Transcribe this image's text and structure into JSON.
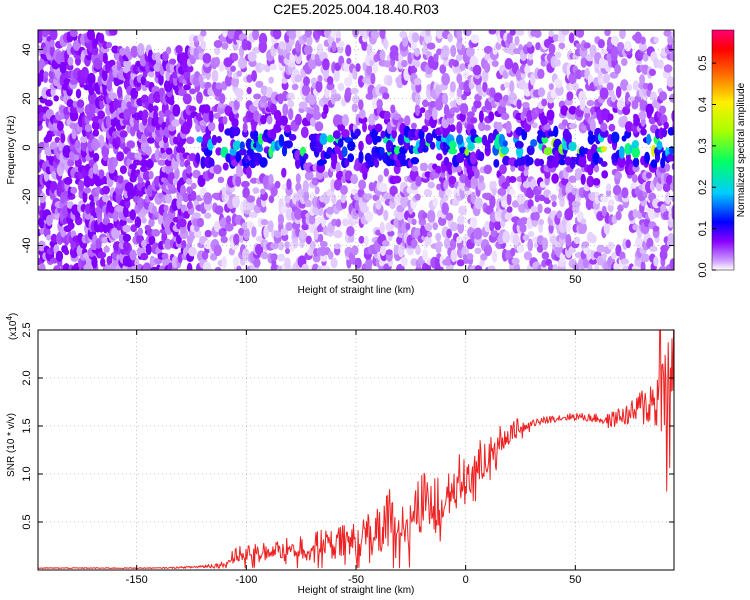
{
  "figure": {
    "title": "C2E5.2025.004.18.40.R03"
  },
  "chart_data": [
    {
      "type": "heatmap",
      "xlabel": "Height of straight line (km)",
      "ylabel": "Frequency (Hz)",
      "xlim": [
        -195,
        95
      ],
      "ylim": [
        -50,
        48
      ],
      "xticks": [
        -150,
        -100,
        -50,
        0,
        50
      ],
      "yticks": [
        -40,
        -20,
        0,
        20,
        40
      ],
      "grid": true,
      "colorbar": {
        "label": "Normalized spectral amplitude",
        "range": [
          0.0,
          0.58
        ],
        "ticks": [
          0.0,
          0.1,
          0.2,
          0.3,
          0.4,
          0.5
        ],
        "colors": [
          "#ffffff",
          "#8800ff",
          "#0000ff",
          "#00ffff",
          "#00ff00",
          "#ffff00",
          "#ff0000",
          "#ff0088"
        ]
      },
      "description_values": {
        "band_center_hz": 0,
        "band_peak_amplitude": 0.45,
        "band_start_km": -125
      }
    },
    {
      "type": "line",
      "xlabel": "Height of straight line (km)",
      "ylabel": "SNR (10 * v/v)",
      "y_multiplier": "(x10",
      "y_multiplier_exp": "4",
      "y_multiplier_close": ")",
      "xlim": [
        -195,
        95
      ],
      "ylim": [
        0,
        2.5
      ],
      "xticks": [
        -150,
        -100,
        -50,
        0,
        50
      ],
      "yticks": [
        0.5,
        1.0,
        1.5,
        2.0,
        2.5
      ],
      "ytick_labels": [
        "0.5",
        "1.0",
        "1.5",
        "2.0",
        "2.5"
      ],
      "color": "#ee2222",
      "series": [
        {
          "x": [
            -195,
            -180,
            -160,
            -140,
            -125,
            -112,
            -105,
            -100,
            -90,
            -80,
            -70,
            -60,
            -50,
            -45,
            -40,
            -35,
            -30,
            -25,
            -20,
            -15,
            -10,
            -5,
            0,
            5,
            10,
            15,
            20,
            25,
            30,
            35,
            40,
            50,
            60,
            65,
            70,
            75,
            80,
            85,
            88,
            90,
            92,
            94,
            95
          ],
          "values": [
            0.02,
            0.02,
            0.02,
            0.02,
            0.03,
            0.05,
            0.15,
            0.18,
            0.2,
            0.22,
            0.25,
            0.28,
            0.3,
            0.35,
            0.45,
            0.5,
            0.55,
            0.6,
            0.65,
            0.75,
            0.8,
            0.9,
            1.0,
            1.1,
            1.2,
            1.35,
            1.45,
            1.5,
            1.53,
            1.55,
            1.58,
            1.6,
            1.58,
            1.55,
            1.6,
            1.62,
            1.7,
            1.75,
            1.8,
            1.9,
            2.0,
            2.1,
            2.1
          ],
          "noise": [
            0.005,
            0.005,
            0.005,
            0.005,
            0.01,
            0.03,
            0.08,
            0.1,
            0.1,
            0.12,
            0.15,
            0.18,
            0.2,
            0.25,
            0.3,
            0.35,
            0.35,
            0.35,
            0.35,
            0.35,
            0.3,
            0.3,
            0.25,
            0.25,
            0.2,
            0.15,
            0.12,
            0.08,
            0.05,
            0.04,
            0.04,
            0.04,
            0.05,
            0.08,
            0.1,
            0.12,
            0.2,
            0.3,
            0.4,
            0.5,
            0.6,
            0.4,
            0.3
          ]
        }
      ]
    }
  ]
}
